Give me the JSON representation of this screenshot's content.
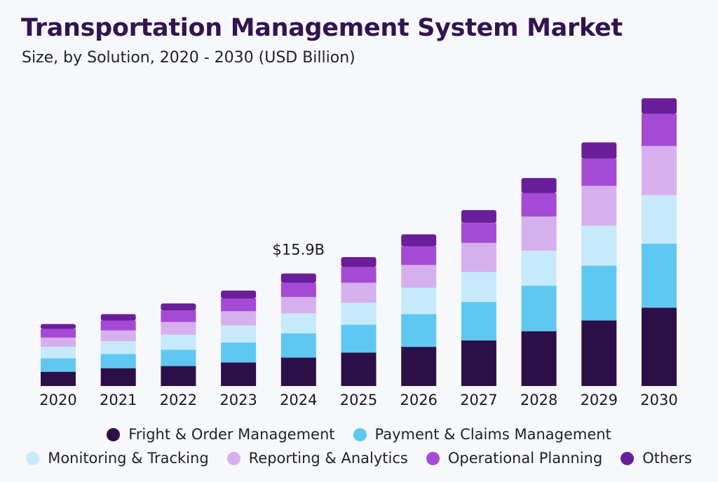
{
  "chart_data": {
    "type": "bar",
    "stacked": true,
    "title": "Transportation Management System Market",
    "subtitle": "Size, by Solution, 2020 - 2030 (USD Billion)",
    "categories": [
      "2020",
      "2021",
      "2022",
      "2023",
      "2024",
      "2025",
      "2026",
      "2027",
      "2028",
      "2029",
      "2030"
    ],
    "series": [
      {
        "name": "Fright & Order Management",
        "color": "#2c0f47",
        "values": [
          2.0,
          2.5,
          2.8,
          3.3,
          4.0,
          4.7,
          5.5,
          6.4,
          7.7,
          9.2,
          11.0
        ]
      },
      {
        "name": "Payment & Claims Management",
        "color": "#5ec8f2",
        "values": [
          1.9,
          2.0,
          2.3,
          2.8,
          3.4,
          3.9,
          4.6,
          5.4,
          6.4,
          7.7,
          9.0
        ]
      },
      {
        "name": "Monitoring & Tracking",
        "color": "#c6eafb",
        "values": [
          1.6,
          1.8,
          2.1,
          2.4,
          2.8,
          3.1,
          3.7,
          4.2,
          4.9,
          5.6,
          6.8
        ]
      },
      {
        "name": "Reporting & Analytics",
        "color": "#d6b0ec",
        "values": [
          1.3,
          1.5,
          1.8,
          2.0,
          2.3,
          2.8,
          3.2,
          4.1,
          4.8,
          5.6,
          6.9
        ]
      },
      {
        "name": "Operational Planning",
        "color": "#a54ad4",
        "values": [
          1.2,
          1.4,
          1.6,
          1.8,
          2.0,
          2.2,
          2.6,
          2.8,
          3.3,
          3.8,
          4.5
        ]
      },
      {
        "name": "Others",
        "color": "#6a1e9a",
        "values": [
          0.7,
          0.9,
          1.0,
          1.1,
          1.3,
          1.4,
          1.7,
          1.8,
          2.1,
          2.3,
          2.2
        ]
      }
    ],
    "annotations": [
      {
        "category": "2024",
        "text": "$15.9B"
      }
    ],
    "ylim": [
      0,
      42
    ],
    "grid": false,
    "legend": "bottom-center"
  }
}
